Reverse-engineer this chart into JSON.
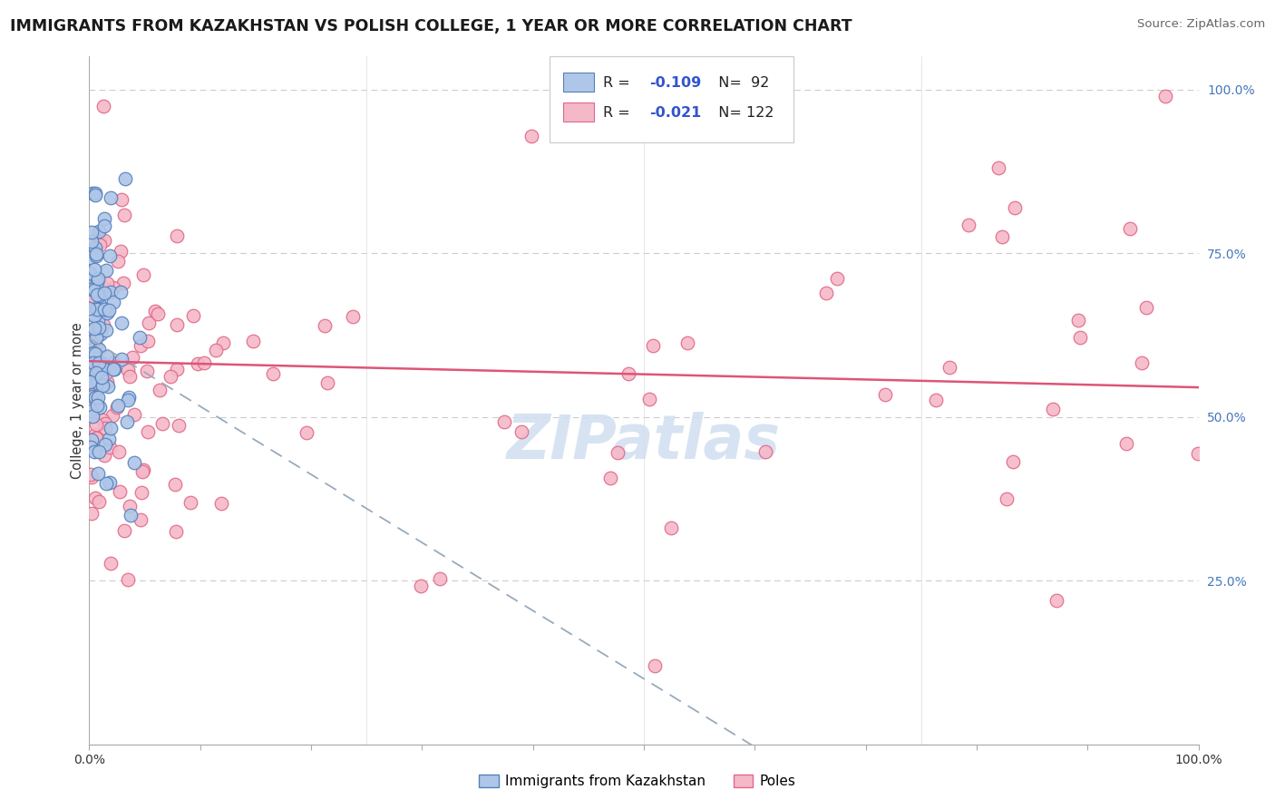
{
  "title": "IMMIGRANTS FROM KAZAKHSTAN VS POLISH COLLEGE, 1 YEAR OR MORE CORRELATION CHART",
  "source_text": "Source: ZipAtlas.com",
  "ylabel": "College, 1 year or more",
  "right_yticklabels": [
    "25.0%",
    "50.0%",
    "75.0%",
    "100.0%"
  ],
  "right_ytick_vals": [
    0.25,
    0.5,
    0.75,
    1.0
  ],
  "xlim": [
    0.0,
    1.0
  ],
  "ylim": [
    0.0,
    1.05
  ],
  "blue_R": -0.109,
  "blue_N": 92,
  "pink_R": -0.021,
  "pink_N": 122,
  "legend_label_blue": "Immigrants from Kazakhstan",
  "legend_label_pink": "Poles",
  "blue_color": "#aec6e8",
  "pink_color": "#f5b8c8",
  "blue_edge": "#5580bb",
  "pink_edge": "#e06888",
  "blue_line_color": "#8ab0cc",
  "pink_line_color": "#dd5577",
  "title_color": "#1a1a1a",
  "source_color": "#666666",
  "right_label_color": "#4477bb",
  "grid_color": "#e0e0e0",
  "grid_dash_color": "#cccccc",
  "r_value_color": "#3355cc",
  "watermark_color": "#d0dff0",
  "blue_line_x": [
    0.0,
    1.0
  ],
  "blue_line_y": [
    0.62,
    -0.42
  ],
  "pink_line_x": [
    0.0,
    1.0
  ],
  "pink_line_y": [
    0.585,
    0.545
  ]
}
